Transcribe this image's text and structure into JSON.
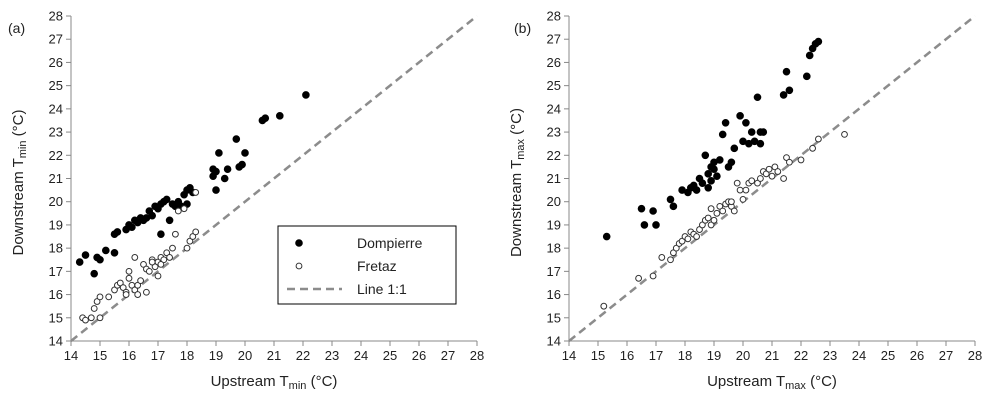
{
  "chart_data": [
    {
      "type": "scatter",
      "panel_label": "(a)",
      "xlabel": {
        "main": "Upstream T",
        "sub": "min",
        "unit": " (°C)"
      },
      "ylabel": {
        "main": "Downstream T",
        "sub": "min",
        "unit": " (°C)"
      },
      "xlim": [
        14,
        28
      ],
      "ylim": [
        14,
        28
      ],
      "ticks": [
        "14",
        "15",
        "16",
        "17",
        "18",
        "19",
        "20",
        "21",
        "22",
        "23",
        "24",
        "25",
        "26",
        "27",
        "28"
      ],
      "grid": false,
      "legend": {
        "placement": "lower-right",
        "entries": [
          "Dompierre",
          "Fretaz",
          "Line 1:1"
        ]
      },
      "series": [
        {
          "name": "Dompierre",
          "marker": "filled",
          "points": [
            [
              14.3,
              17.4
            ],
            [
              14.5,
              17.7
            ],
            [
              14.8,
              16.9
            ],
            [
              14.9,
              17.6
            ],
            [
              15.2,
              17.9
            ],
            [
              15.0,
              17.5
            ],
            [
              15.5,
              18.6
            ],
            [
              15.6,
              18.7
            ],
            [
              15.5,
              17.8
            ],
            [
              15.9,
              18.8
            ],
            [
              16.0,
              19.0
            ],
            [
              16.1,
              18.9
            ],
            [
              16.2,
              19.2
            ],
            [
              16.3,
              19.1
            ],
            [
              16.4,
              19.3
            ],
            [
              16.5,
              19.2
            ],
            [
              16.6,
              19.3
            ],
            [
              16.7,
              19.6
            ],
            [
              16.9,
              19.8
            ],
            [
              17.0,
              19.7
            ],
            [
              17.1,
              19.9
            ],
            [
              17.2,
              20.0
            ],
            [
              17.3,
              20.1
            ],
            [
              17.1,
              18.6
            ],
            [
              17.4,
              19.2
            ],
            [
              17.6,
              19.8
            ],
            [
              17.7,
              20.0
            ],
            [
              17.8,
              19.8
            ],
            [
              17.9,
              20.3
            ],
            [
              18.0,
              20.5
            ],
            [
              18.1,
              20.6
            ],
            [
              18.2,
              20.4
            ],
            [
              18.9,
              21.4
            ],
            [
              18.9,
              21.1
            ],
            [
              19.0,
              21.3
            ],
            [
              19.0,
              20.5
            ],
            [
              19.1,
              22.1
            ],
            [
              19.3,
              21.0
            ],
            [
              19.4,
              21.4
            ],
            [
              19.7,
              22.7
            ],
            [
              19.8,
              21.5
            ],
            [
              19.9,
              21.6
            ],
            [
              20.0,
              22.1
            ],
            [
              20.6,
              23.5
            ],
            [
              20.7,
              23.6
            ],
            [
              21.2,
              23.7
            ],
            [
              22.1,
              24.6
            ],
            [
              16.8,
              19.4
            ],
            [
              17.5,
              19.9
            ],
            [
              18.0,
              19.9
            ]
          ]
        },
        {
          "name": "Fretaz",
          "marker": "open",
          "points": [
            [
              14.4,
              15.0
            ],
            [
              14.5,
              14.9
            ],
            [
              14.7,
              15.0
            ],
            [
              14.8,
              15.4
            ],
            [
              14.9,
              15.7
            ],
            [
              15.0,
              15.9
            ],
            [
              15.0,
              15.0
            ],
            [
              15.3,
              15.9
            ],
            [
              15.5,
              16.2
            ],
            [
              15.6,
              16.4
            ],
            [
              15.7,
              16.5
            ],
            [
              15.8,
              16.3
            ],
            [
              15.9,
              16.1
            ],
            [
              16.0,
              16.7
            ],
            [
              16.0,
              17.0
            ],
            [
              16.1,
              16.4
            ],
            [
              16.2,
              16.2
            ],
            [
              16.3,
              16.4
            ],
            [
              16.2,
              17.6
            ],
            [
              16.4,
              16.6
            ],
            [
              16.5,
              17.3
            ],
            [
              16.6,
              17.1
            ],
            [
              16.7,
              17.0
            ],
            [
              16.8,
              17.5
            ],
            [
              16.9,
              17.2
            ],
            [
              17.0,
              17.4
            ],
            [
              17.0,
              16.8
            ],
            [
              17.1,
              17.6
            ],
            [
              17.2,
              17.5
            ],
            [
              17.3,
              17.8
            ],
            [
              17.4,
              17.6
            ],
            [
              17.5,
              18.0
            ],
            [
              17.6,
              18.6
            ],
            [
              17.7,
              19.6
            ],
            [
              17.9,
              19.7
            ],
            [
              18.0,
              18.0
            ],
            [
              18.1,
              18.3
            ],
            [
              18.2,
              18.5
            ],
            [
              18.3,
              18.7
            ],
            [
              18.3,
              20.4
            ],
            [
              16.6,
              16.1
            ],
            [
              16.3,
              16.0
            ],
            [
              15.9,
              16.0
            ],
            [
              16.8,
              17.4
            ],
            [
              17.1,
              17.3
            ]
          ]
        },
        {
          "name": "Line 1:1",
          "style": "dashed",
          "points": [
            [
              14,
              14
            ],
            [
              28,
              28
            ]
          ]
        }
      ]
    },
    {
      "type": "scatter",
      "panel_label": "(b)",
      "xlabel": {
        "main": "Upstream T",
        "sub": "max",
        "unit": " (°C)"
      },
      "ylabel": {
        "main": "Downstream T",
        "sub": "max",
        "unit": " (°C)"
      },
      "xlim": [
        14,
        28
      ],
      "ylim": [
        14,
        28
      ],
      "ticks": [
        "14",
        "15",
        "16",
        "17",
        "18",
        "19",
        "20",
        "21",
        "22",
        "23",
        "24",
        "25",
        "26",
        "27",
        "28"
      ],
      "grid": false,
      "series": [
        {
          "name": "Dompierre",
          "marker": "filled",
          "points": [
            [
              15.3,
              18.5
            ],
            [
              16.5,
              19.7
            ],
            [
              16.6,
              19.0
            ],
            [
              16.9,
              19.6
            ],
            [
              17.0,
              19.0
            ],
            [
              17.5,
              20.1
            ],
            [
              17.6,
              19.8
            ],
            [
              17.9,
              20.5
            ],
            [
              18.1,
              20.4
            ],
            [
              18.2,
              20.6
            ],
            [
              18.3,
              20.7
            ],
            [
              18.4,
              20.5
            ],
            [
              18.5,
              21.0
            ],
            [
              18.7,
              22.0
            ],
            [
              18.8,
              21.2
            ],
            [
              18.9,
              21.5
            ],
            [
              19.0,
              21.7
            ],
            [
              19.1,
              21.1
            ],
            [
              19.2,
              21.8
            ],
            [
              19.3,
              22.9
            ],
            [
              19.4,
              23.4
            ],
            [
              19.5,
              21.5
            ],
            [
              19.7,
              22.3
            ],
            [
              19.9,
              23.7
            ],
            [
              20.0,
              22.6
            ],
            [
              20.1,
              23.4
            ],
            [
              20.2,
              22.5
            ],
            [
              20.3,
              23.0
            ],
            [
              20.4,
              22.6
            ],
            [
              20.5,
              24.5
            ],
            [
              20.6,
              23.0
            ],
            [
              20.7,
              23.0
            ],
            [
              21.4,
              24.6
            ],
            [
              21.5,
              25.6
            ],
            [
              21.6,
              24.8
            ],
            [
              22.2,
              25.4
            ],
            [
              22.3,
              26.3
            ],
            [
              22.4,
              26.6
            ],
            [
              22.5,
              26.8
            ],
            [
              22.6,
              26.9
            ],
            [
              18.9,
              20.9
            ],
            [
              19.0,
              21.4
            ],
            [
              18.8,
              20.6
            ],
            [
              19.6,
              21.7
            ],
            [
              20.6,
              22.5
            ],
            [
              18.6,
              20.8
            ]
          ]
        },
        {
          "name": "Fretaz",
          "marker": "open",
          "points": [
            [
              15.2,
              15.5
            ],
            [
              16.4,
              16.7
            ],
            [
              16.9,
              16.8
            ],
            [
              17.2,
              17.6
            ],
            [
              17.5,
              17.5
            ],
            [
              17.6,
              17.8
            ],
            [
              17.7,
              18.0
            ],
            [
              17.8,
              18.2
            ],
            [
              17.9,
              18.3
            ],
            [
              18.0,
              18.5
            ],
            [
              18.1,
              18.4
            ],
            [
              18.2,
              18.7
            ],
            [
              18.3,
              18.6
            ],
            [
              18.4,
              18.5
            ],
            [
              18.5,
              18.8
            ],
            [
              18.6,
              19.0
            ],
            [
              18.7,
              19.2
            ],
            [
              18.8,
              19.3
            ],
            [
              18.9,
              19.0
            ],
            [
              19.0,
              19.2
            ],
            [
              19.1,
              19.5
            ],
            [
              19.2,
              19.8
            ],
            [
              19.3,
              19.6
            ],
            [
              19.4,
              19.9
            ],
            [
              19.5,
              20.0
            ],
            [
              19.6,
              19.8
            ],
            [
              19.7,
              19.6
            ],
            [
              19.8,
              20.8
            ],
            [
              19.9,
              20.5
            ],
            [
              20.0,
              20.1
            ],
            [
              20.1,
              20.5
            ],
            [
              20.2,
              20.8
            ],
            [
              20.3,
              20.9
            ],
            [
              20.5,
              20.8
            ],
            [
              20.6,
              21.0
            ],
            [
              20.7,
              21.3
            ],
            [
              20.8,
              21.2
            ],
            [
              20.9,
              21.4
            ],
            [
              21.0,
              21.1
            ],
            [
              21.1,
              21.5
            ],
            [
              21.2,
              21.3
            ],
            [
              21.5,
              21.9
            ],
            [
              21.4,
              21.0
            ],
            [
              21.6,
              21.7
            ],
            [
              22.0,
              21.8
            ],
            [
              22.4,
              22.3
            ],
            [
              22.6,
              22.7
            ],
            [
              23.5,
              22.9
            ],
            [
              18.9,
              19.7
            ],
            [
              19.6,
              20.0
            ]
          ]
        },
        {
          "name": "Line 1:1",
          "style": "dashed",
          "points": [
            [
              14,
              14
            ],
            [
              28,
              28
            ]
          ]
        }
      ]
    }
  ]
}
